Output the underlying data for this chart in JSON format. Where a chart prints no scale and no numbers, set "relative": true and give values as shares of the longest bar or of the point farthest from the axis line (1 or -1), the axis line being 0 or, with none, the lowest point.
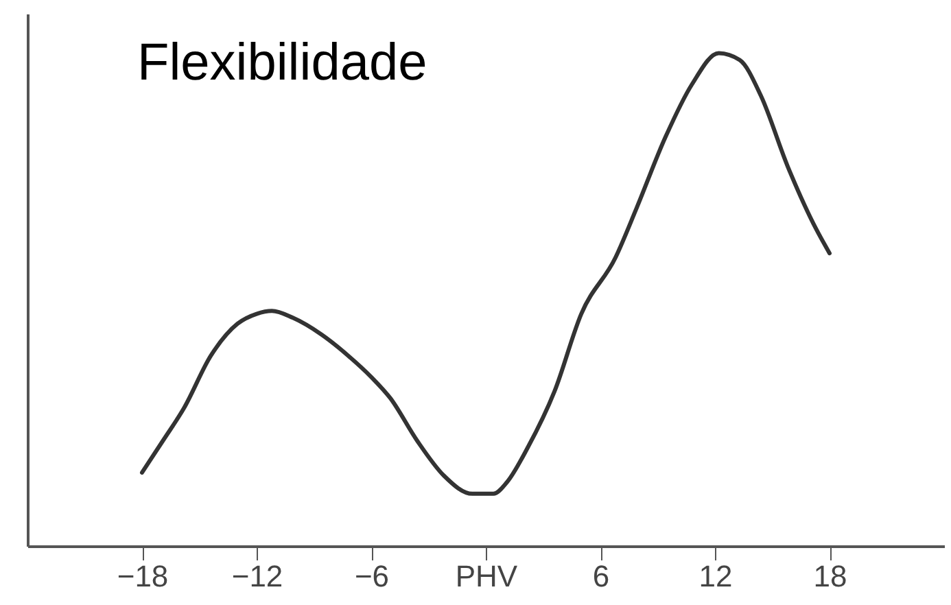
{
  "chart_data": {
    "type": "line",
    "title": "Flexibilidade",
    "relative": true,
    "tick_labels": "x",
    "xlim": [
      -24,
      24
    ],
    "xticks": [
      -18,
      -12,
      -6,
      {
        "value": 0,
        "label": "PHV"
      },
      6,
      12,
      18
    ],
    "grid": false,
    "legend": false,
    "marker": "none",
    "line_style": "solid",
    "series": [
      {
        "color": "#333333",
        "x": [
          -18,
          -16.9,
          -15.8,
          -14.4,
          -13.0,
          -12,
          -11.2,
          -10.1,
          -8.6,
          -7.2,
          -6,
          -5.0,
          -3.6,
          -2.2,
          -0.7,
          0.4,
          1.1,
          2.2,
          3.6,
          5.0,
          6.8,
          7.9,
          9.4,
          10.8,
          12.2,
          13.3,
          14.4,
          15.8,
          17.3,
          18
        ],
        "values": [
          0.149,
          0.214,
          0.28,
          0.386,
          0.451,
          0.471,
          0.477,
          0.463,
          0.429,
          0.386,
          0.343,
          0.3,
          0.214,
          0.143,
          0.106,
          0.106,
          0.129,
          0.2,
          0.314,
          0.471,
          0.586,
          0.686,
          0.829,
          0.937,
          1,
          0.986,
          0.914,
          0.771,
          0.643,
          0.594
        ]
      }
    ]
  }
}
